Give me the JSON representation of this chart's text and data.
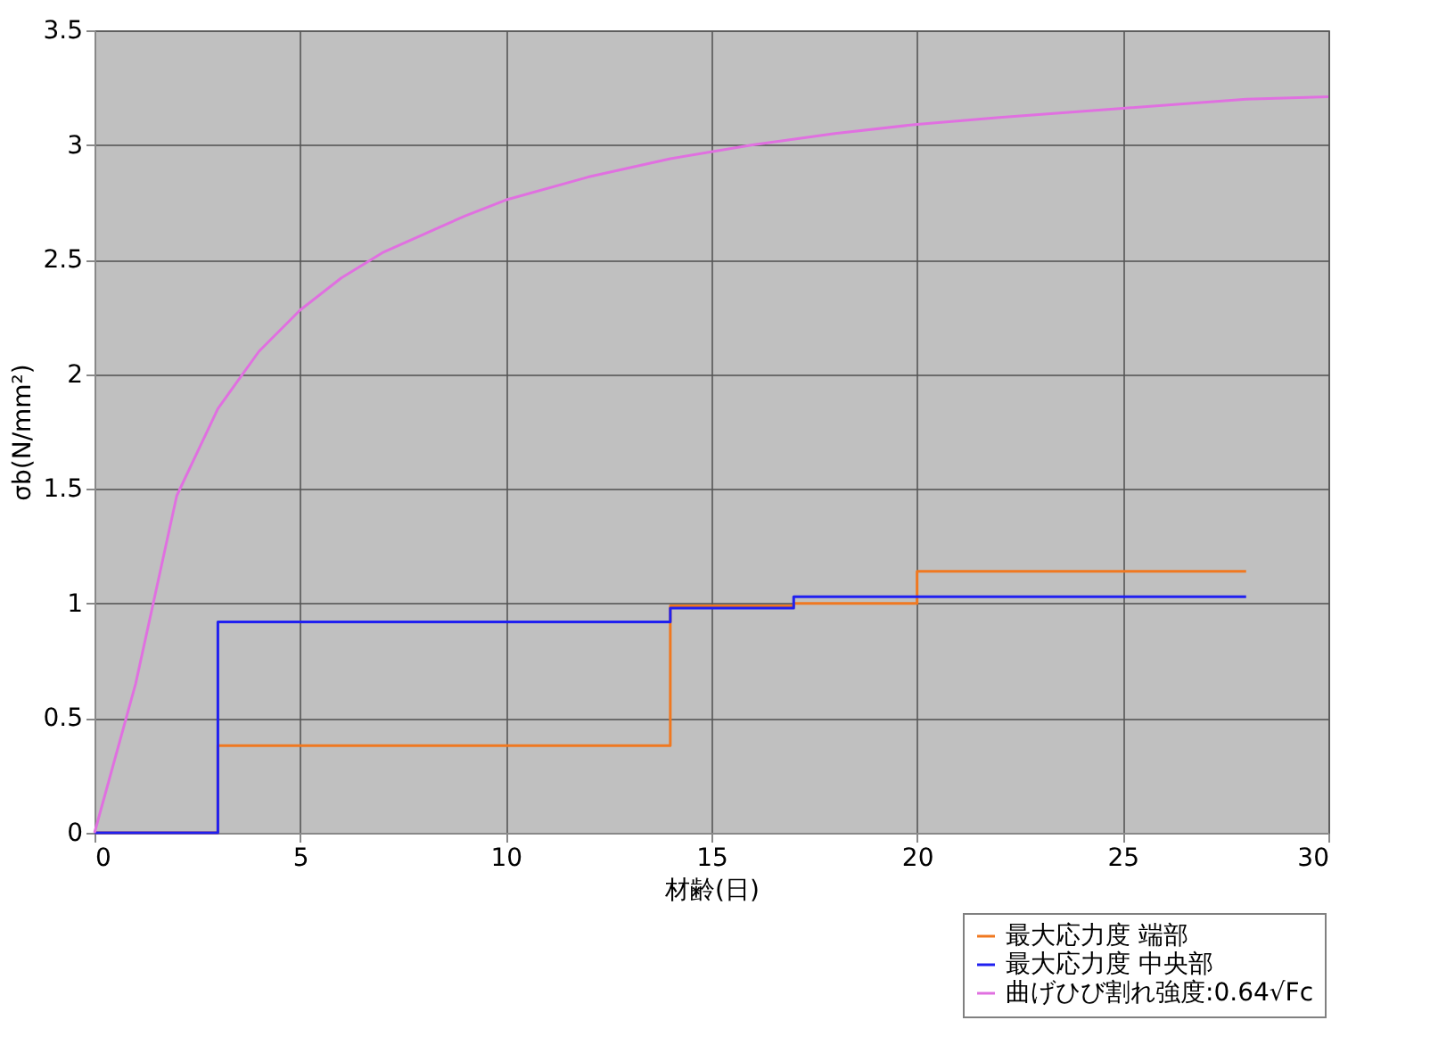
{
  "chart_data": {
    "type": "line",
    "xlabel": "材齢(日)",
    "ylabel": "σb(N/mm²)",
    "xlim": [
      0,
      30
    ],
    "xticks": [
      0,
      5,
      10,
      15,
      20,
      25,
      30
    ],
    "ylim": [
      0,
      3.5
    ],
    "yticks": [
      0,
      0.5,
      1,
      1.5,
      2,
      2.5,
      3,
      3.5
    ],
    "grid": true,
    "legend": "bottom right",
    "marker": "none",
    "line_style": "solid",
    "series": [
      {
        "name": "最大応力度 端部",
        "type": "step",
        "color": "#f07820",
        "x": [
          0,
          3,
          14,
          17,
          20,
          28
        ],
        "values": [
          0,
          0.38,
          0.99,
          1.0,
          1.14,
          1.14
        ]
      },
      {
        "name": "最大応力度 中央部",
        "type": "step",
        "color": "#2020f0",
        "x": [
          0,
          3,
          14,
          17,
          28
        ],
        "values": [
          0,
          0.92,
          0.98,
          1.03,
          1.03
        ]
      },
      {
        "name": "曲げひび割れ強度:0.64√Fc",
        "type": "line",
        "color": "#e070e0",
        "x": [
          0,
          1,
          2,
          3,
          4,
          5,
          6,
          7,
          8,
          9,
          10,
          12,
          14,
          16,
          18,
          20,
          22,
          25,
          28,
          30
        ],
        "values": [
          0,
          0.65,
          1.47,
          1.85,
          2.1,
          2.28,
          2.42,
          2.53,
          2.61,
          2.69,
          2.76,
          2.86,
          2.94,
          3.0,
          3.05,
          3.09,
          3.12,
          3.16,
          3.2,
          3.21
        ]
      }
    ]
  }
}
